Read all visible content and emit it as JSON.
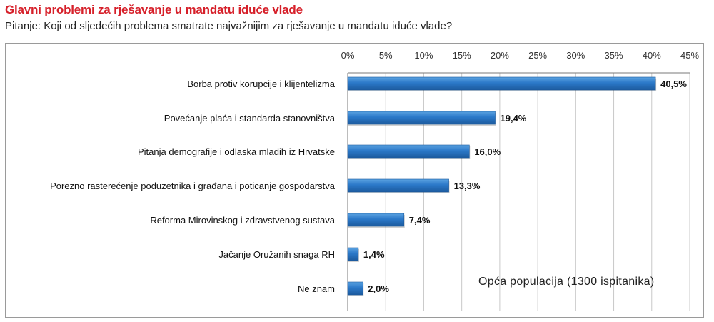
{
  "header": {
    "title": "Glavni problemi za rješavanje u mandatu iduće vlade",
    "subtitle": "Pitanje: Koji od sljedećih problema smatrate najvažnijim za rješavanje u mandatu iduće vlade?"
  },
  "note": "Opća populacija (1300 ispitanika)",
  "colors": {
    "bar_light": "#5aa2e0",
    "bar_mid": "#2b78c8",
    "bar_dark": "#1c5a9e",
    "grid": "#c8c8c8",
    "axis": "#7a7a7a"
  },
  "chart_data": {
    "type": "bar",
    "orientation": "horizontal",
    "categories": [
      "Borba protiv korupcije i klijentelizma",
      "Povećanje plaća i standarda stanovništva",
      "Pitanja demografije i odlaska mladih iz Hrvatske",
      "Porezno rasterećenje poduzetnika i građana i poticanje gospodarstva",
      "Reforma Mirovinskog i zdravstvenog sustava",
      "Jačanje Oružanih snaga RH",
      "Ne znam"
    ],
    "values": [
      40.5,
      19.4,
      16.0,
      13.3,
      7.4,
      1.4,
      2.0
    ],
    "value_labels": [
      "40,5%",
      "19,4%",
      "16,0%",
      "13,3%",
      "7,4%",
      "1,4%",
      "2,0%"
    ],
    "xlim": [
      0,
      45
    ],
    "ticks": [
      0,
      5,
      10,
      15,
      20,
      25,
      30,
      35,
      40,
      45
    ],
    "tick_labels": [
      "0%",
      "5%",
      "10%",
      "15%",
      "20%",
      "25%",
      "30%",
      "35%",
      "40%",
      "45%"
    ],
    "axis_position": "top",
    "grid": true
  }
}
